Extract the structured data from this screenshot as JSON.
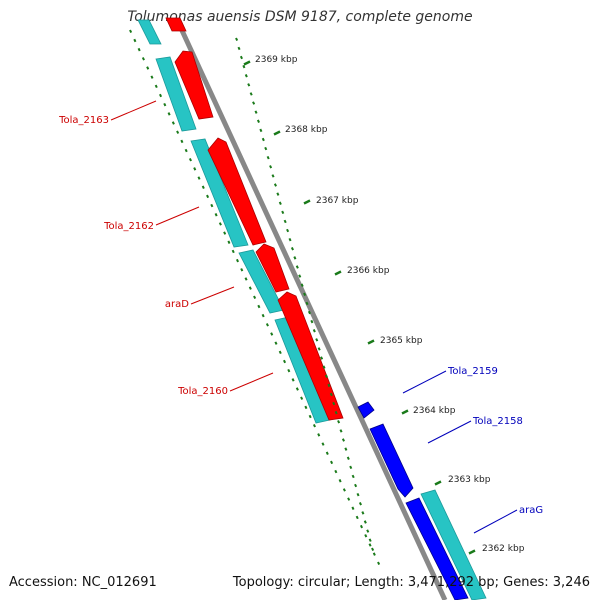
{
  "title": "Tolumonas auensis DSM 9187, complete genome",
  "footer": {
    "accession": "Accession: NC_012691",
    "topology": "Topology: circular; Length: 3,471,292 bp; Genes: 3,246"
  },
  "colors": {
    "reverse_gene": "#ff0000",
    "forward_gene": "#0000ff",
    "reverse_cds": "#27c4c4",
    "forward_cds": "#27c4c4",
    "backbone": "#888888",
    "ticks": "#1a7a1a",
    "reverse_label": "#cc0000",
    "forward_label": "#0000bb"
  },
  "scale": {
    "labels": [
      "2369 kbp",
      "2368 kbp",
      "2367 kbp",
      "2366 kbp",
      "2365 kbp",
      "2364 kbp",
      "2363 kbp",
      "2362 kbp"
    ]
  },
  "gene_labels": [
    {
      "name": "Tola_2163",
      "strand": "reverse"
    },
    {
      "name": "Tola_2162",
      "strand": "reverse"
    },
    {
      "name": "araD",
      "strand": "reverse"
    },
    {
      "name": "Tola_2160",
      "strand": "reverse"
    },
    {
      "name": "Tola_2159",
      "strand": "forward"
    },
    {
      "name": "Tola_2158",
      "strand": "forward"
    },
    {
      "name": "araG",
      "strand": "forward"
    }
  ]
}
